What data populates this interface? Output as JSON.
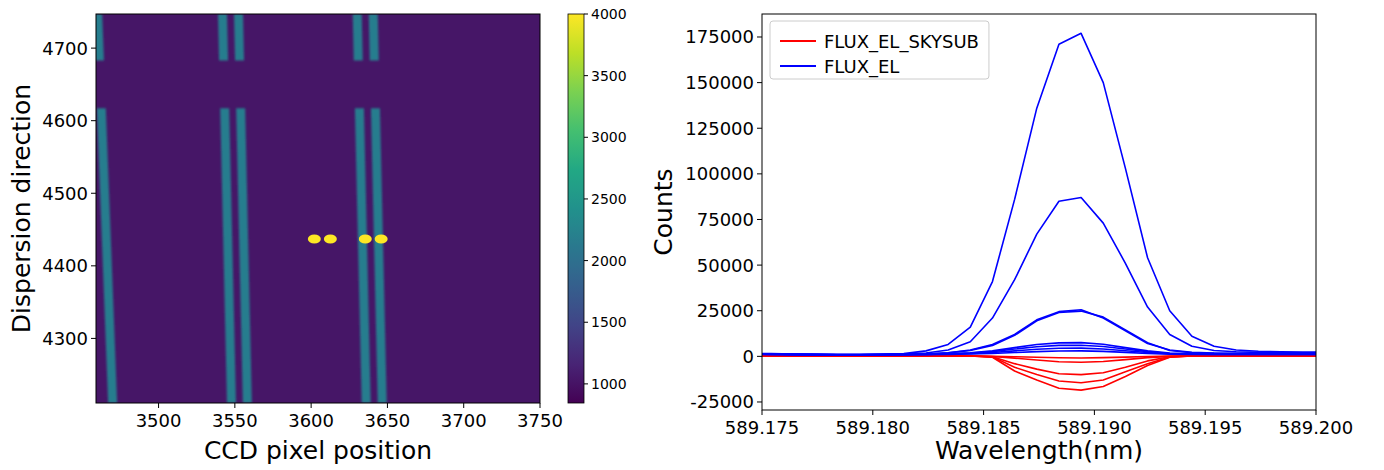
{
  "chart_data": [
    {
      "type": "image",
      "xlabel": "CCD pixel position",
      "ylabel": "Dispersion direction",
      "xlim": [
        3459,
        3750
      ],
      "ylim": [
        4211,
        4747
      ],
      "xticks": [
        3500,
        3550,
        3600,
        3650,
        3700,
        3750
      ],
      "yticks": [
        4300,
        4400,
        4500,
        4600,
        4700
      ],
      "colorbar_range": [
        845,
        4000
      ],
      "colorbar_ticks": [
        1000,
        1500,
        2000,
        2500,
        3000,
        3500,
        4000
      ],
      "background": 1030,
      "gap": [
        4617,
        4683
      ],
      "traces": [
        {
          "x_bottom": 3469.9,
          "x_top": 3460.1,
          "value": 2170
        },
        {
          "x_bottom": 3547.8,
          "x_top": 3541.9,
          "value": 2170
        },
        {
          "x_bottom": 3558.2,
          "x_top": 3552.4,
          "value": 2170
        },
        {
          "x_bottom": 3636.1,
          "x_top": 3630.2,
          "value": 2170
        },
        {
          "x_bottom": 3646.6,
          "x_top": 3640.7,
          "value": 2170
        }
      ],
      "spots": [
        {
          "x": 3602.1,
          "y": 4437,
          "value": 4000
        },
        {
          "x": 3612.6,
          "y": 4437,
          "value": 4000
        },
        {
          "x": 3635.5,
          "y": 4437,
          "value": 4000
        },
        {
          "x": 3645.9,
          "y": 4437,
          "value": 4000
        }
      ]
    },
    {
      "type": "line",
      "xlabel": "Wavelength(nm)",
      "ylabel": "Counts",
      "xlim": [
        589.175,
        589.2
      ],
      "ylim": [
        -29400,
        187600
      ],
      "xticks": [
        589.175,
        {
          "value": 589.18,
          "label": "589.180"
        },
        589.185,
        {
          "value": 589.19,
          "label": "589.190"
        },
        589.195,
        {
          "value": 589.2,
          "label": "589.200"
        }
      ],
      "yticks": [
        -25000,
        0,
        25000,
        50000,
        75000,
        100000,
        125000,
        150000,
        175000
      ],
      "legend": "upper left",
      "x": [
        589.1744,
        589.1754,
        589.1764,
        589.1774,
        589.1784,
        589.1794,
        589.1804,
        589.1814,
        589.1824,
        589.1834,
        589.1844,
        589.1854,
        589.1864,
        589.1874,
        589.1884,
        589.1894,
        589.1904,
        589.1914,
        589.1924,
        589.1934,
        589.1944,
        589.1954,
        589.1964,
        589.1974,
        589.1984,
        589.1994,
        589.2004
      ],
      "series": [
        {
          "name": "FLUX_EL_SKYSUB",
          "color": "#ff0000",
          "values": [
            200,
            200,
            200,
            200,
            200,
            200,
            200,
            200,
            200,
            200,
            200,
            -500,
            -8000,
            -13000,
            -17500,
            -18500,
            -16500,
            -11000,
            -5000,
            -500,
            200,
            200,
            200,
            200,
            200,
            200,
            200
          ]
        },
        {
          "name": "FLUX_EL_SKYSUB",
          "color": "#ff0000",
          "values": [
            200,
            200,
            200,
            200,
            200,
            200,
            200,
            200,
            200,
            200,
            200,
            -300,
            -6000,
            -10000,
            -13500,
            -14500,
            -13000,
            -8500,
            -4000,
            -300,
            200,
            200,
            200,
            200,
            200,
            200,
            200
          ]
        },
        {
          "name": "FLUX_EL_SKYSUB",
          "color": "#ff0000",
          "values": [
            200,
            200,
            200,
            200,
            200,
            200,
            200,
            200,
            200,
            200,
            200,
            -200,
            -4000,
            -7000,
            -9500,
            -10000,
            -9000,
            -6000,
            -2500,
            -200,
            200,
            200,
            200,
            200,
            200,
            200,
            200
          ]
        },
        {
          "name": "FLUX_EL_SKYSUB",
          "color": "#ff0000",
          "values": [
            200,
            200,
            200,
            200,
            200,
            200,
            200,
            200,
            200,
            200,
            200,
            -100,
            -1000,
            -2000,
            -3000,
            -3200,
            -2800,
            -1800,
            -700,
            0,
            200,
            200,
            200,
            200,
            200,
            200,
            200
          ]
        },
        {
          "name": "FLUX_EL_SKYSUB",
          "color": "#ff0000",
          "values": [
            200,
            200,
            200,
            200,
            200,
            200,
            200,
            200,
            200,
            200,
            200,
            0,
            -200,
            -500,
            -800,
            -900,
            -700,
            -400,
            -100,
            100,
            200,
            200,
            200,
            200,
            200,
            200,
            200
          ]
        },
        {
          "name": "FLUX_EL",
          "color": "#0000ff",
          "values": [
            1700,
            1500,
            1300,
            1200,
            1100,
            1100,
            1200,
            1500,
            3000,
            6500,
            16000,
            41000,
            86000,
            136000,
            171000,
            177000,
            150000,
            103000,
            54000,
            25000,
            11000,
            5500,
            3500,
            2800,
            2500,
            2400,
            2300
          ]
        },
        {
          "name": "FLUX_EL",
          "color": "#0000ff",
          "values": [
            1500,
            1400,
            1200,
            1100,
            1000,
            1000,
            1100,
            1300,
            1800,
            3500,
            8000,
            21000,
            42000,
            67000,
            85000,
            87000,
            73000,
            51000,
            27000,
            12000,
            5500,
            3200,
            2500,
            2200,
            2100,
            2000,
            2000
          ]
        },
        {
          "name": "FLUX_EL",
          "color": "#0000ff",
          "values": [
            1400,
            1300,
            1100,
            1000,
            900,
            900,
            1000,
            1100,
            1300,
            2000,
            3500,
            6500,
            12000,
            20000,
            24500,
            25500,
            21000,
            14000,
            7000,
            3500,
            2200,
            1800,
            1700,
            1700,
            1600,
            1600,
            1600
          ]
        },
        {
          "name": "FLUX_EL",
          "color": "#0000ff",
          "values": [
            1400,
            1300,
            1100,
            1000,
            900,
            900,
            1000,
            1100,
            1300,
            1900,
            3200,
            6000,
            11500,
            19500,
            24000,
            24800,
            21500,
            14500,
            7500,
            3200,
            2000,
            1700,
            1600,
            1600,
            1600,
            1600,
            1600
          ]
        },
        {
          "name": "FLUX_EL",
          "color": "#0000ff",
          "values": [
            1300,
            1200,
            1000,
            900,
            800,
            800,
            900,
            1000,
            1100,
            1400,
            2000,
            3000,
            4800,
            6500,
            7400,
            7500,
            6600,
            4800,
            3000,
            1800,
            1400,
            1300,
            1300,
            1300,
            1300,
            1300,
            1300
          ]
        },
        {
          "name": "FLUX_EL",
          "color": "#0000ff",
          "values": [
            1200,
            1100,
            1000,
            900,
            800,
            800,
            900,
            1000,
            1100,
            1300,
            1800,
            2600,
            4000,
            5300,
            6000,
            6100,
            5400,
            4000,
            2600,
            1600,
            1300,
            1200,
            1200,
            1200,
            1200,
            1200,
            1200
          ]
        },
        {
          "name": "FLUX_EL",
          "color": "#0000ff",
          "values": [
            1200,
            1100,
            900,
            800,
            700,
            700,
            800,
            900,
            1000,
            1200,
            1500,
            2100,
            3000,
            3900,
            4400,
            4500,
            4000,
            3100,
            2100,
            1400,
            1200,
            1100,
            1100,
            1100,
            1100,
            1100,
            1100
          ]
        },
        {
          "name": "FLUX_EL",
          "color": "#0000ff",
          "values": [
            1100,
            1000,
            900,
            800,
            700,
            700,
            800,
            900,
            1000,
            1100,
            1300,
            1600,
            2100,
            2600,
            2900,
            3000,
            2700,
            2200,
            1600,
            1200,
            1100,
            1000,
            1000,
            1000,
            1000,
            1000,
            1000
          ]
        }
      ]
    }
  ]
}
